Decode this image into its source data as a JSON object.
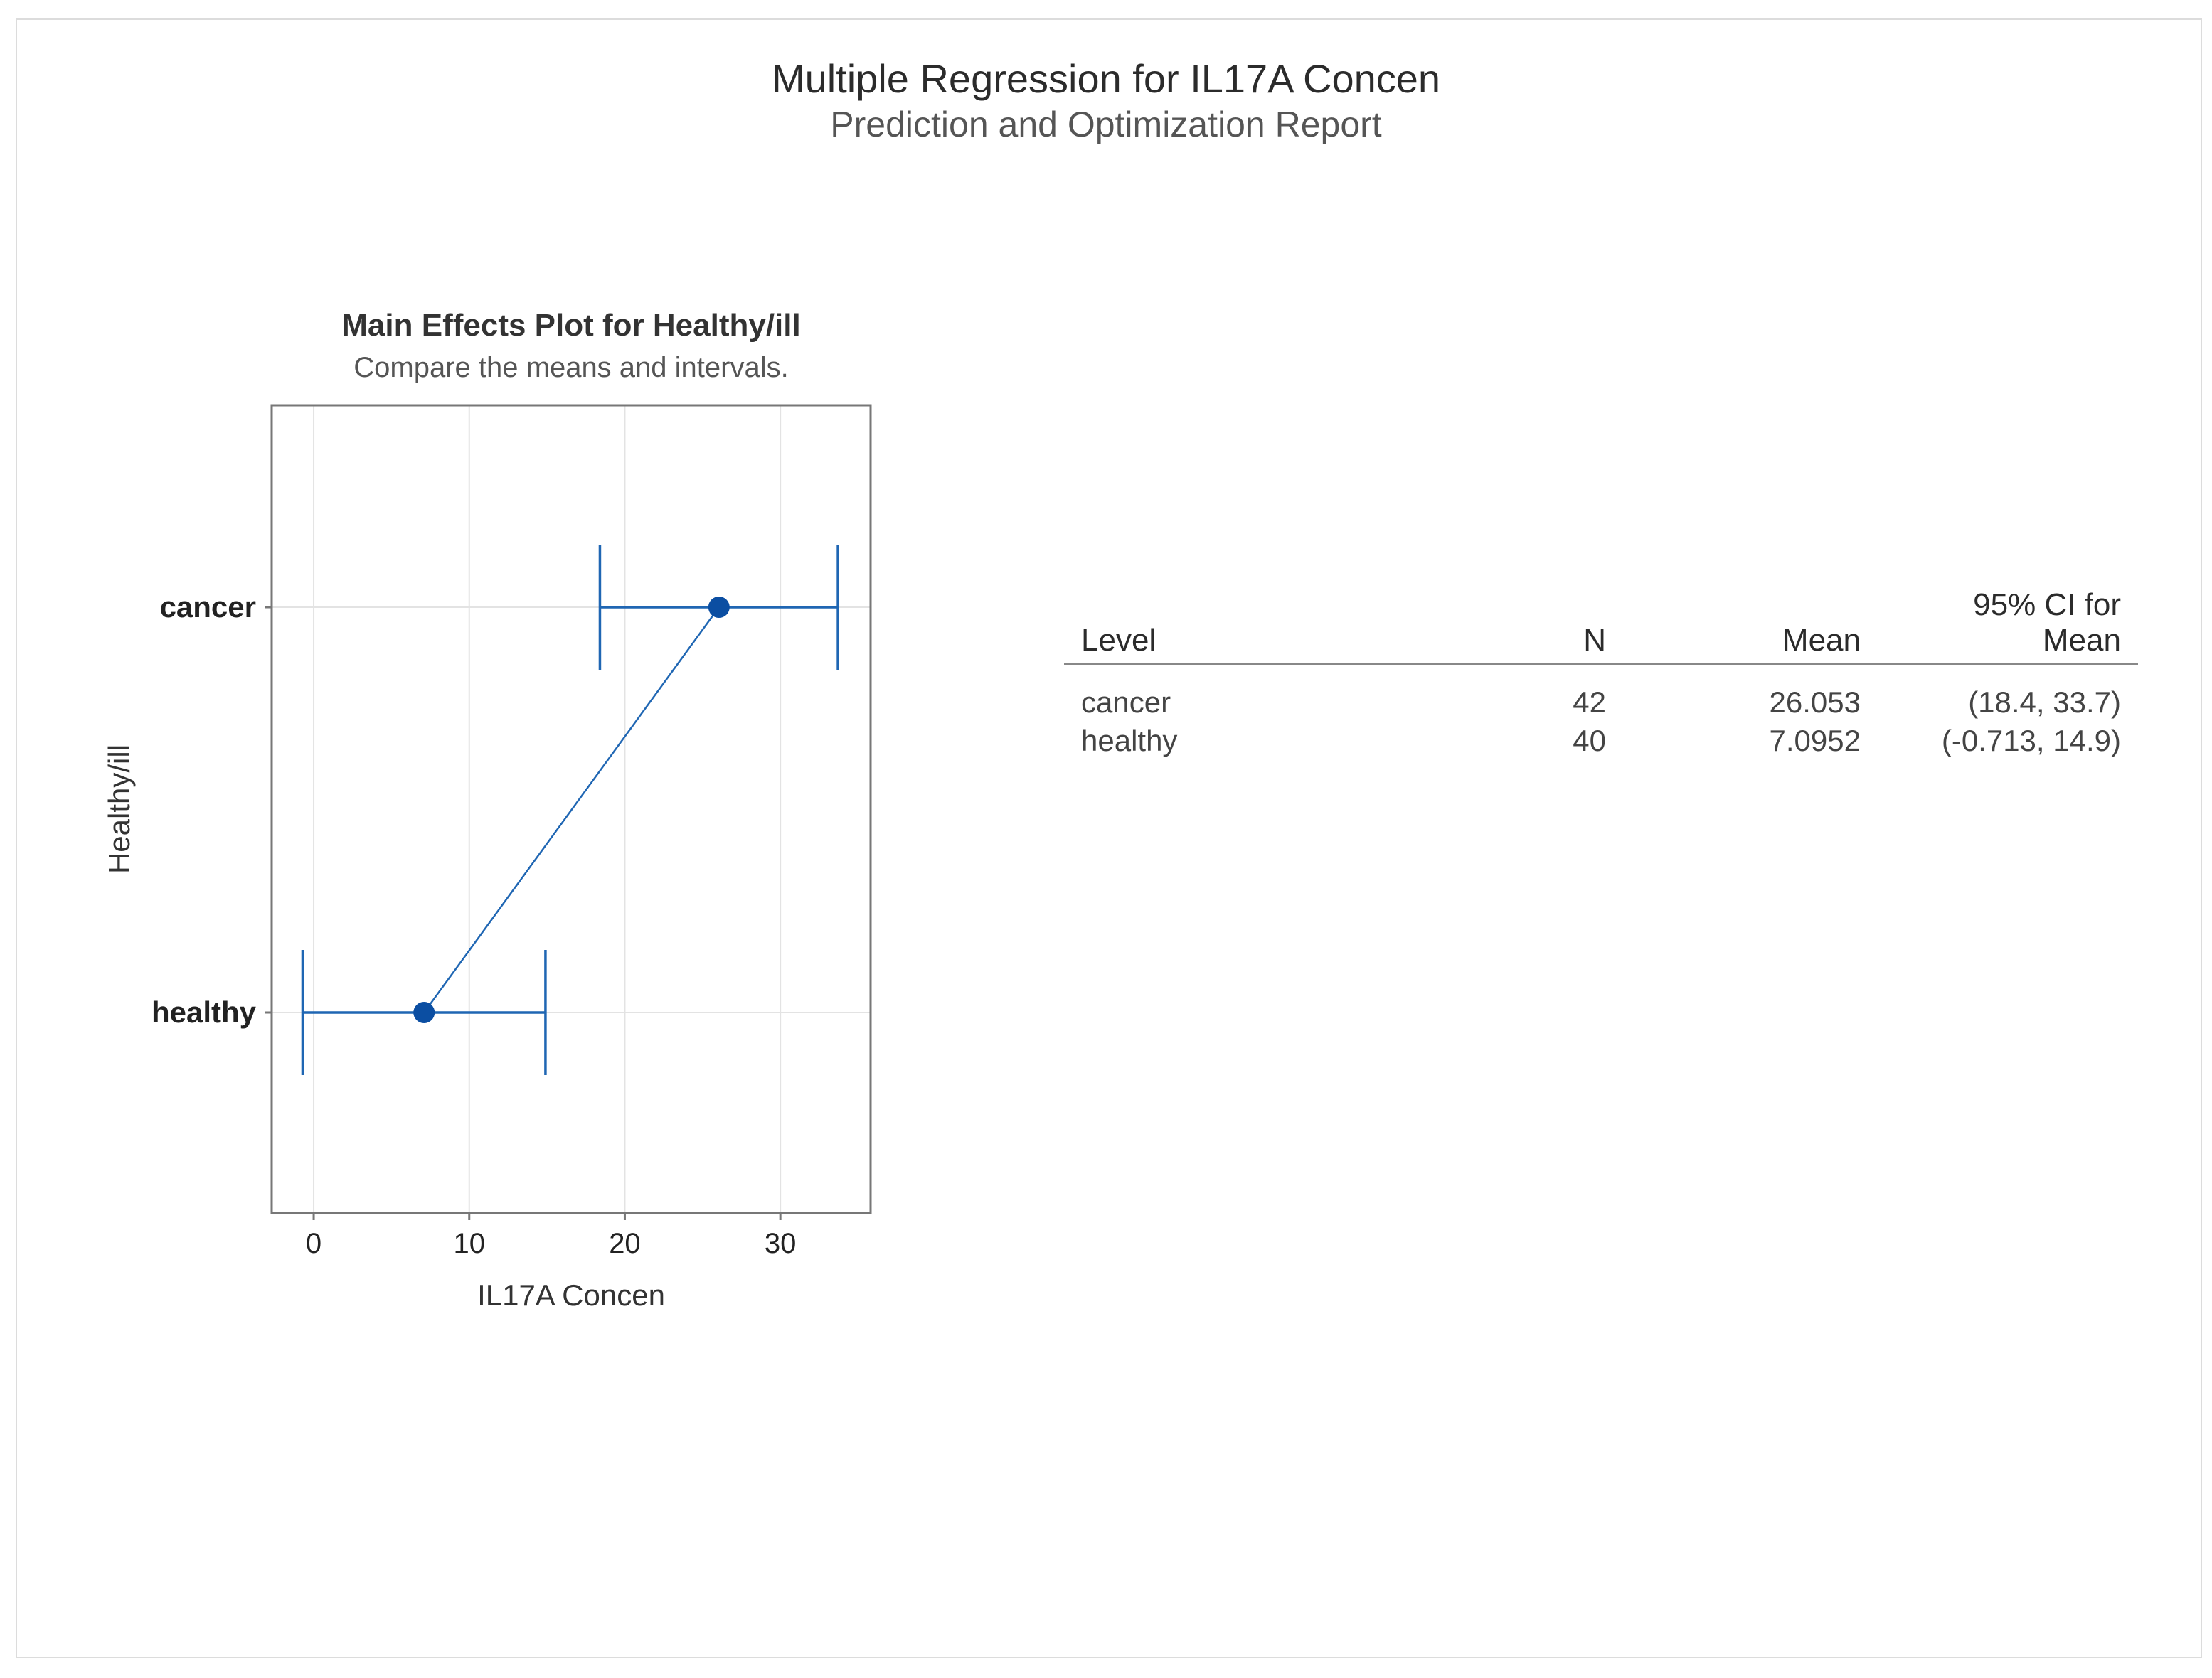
{
  "report": {
    "title": "Multiple Regression for IL17A Concen",
    "subtitle": "Prediction and Optimization Report"
  },
  "chart_data": {
    "type": "scatter",
    "title": "Main Effects Plot for Healthy/ill",
    "subtitle": "Compare the means and intervals.",
    "xlabel": "IL17A Concen",
    "ylabel": "Healthy/ill",
    "xlim": [
      -2.7,
      35.8
    ],
    "xticks": [
      0,
      10,
      20,
      30
    ],
    "categories": [
      "cancer",
      "healthy"
    ],
    "means": [
      26.053,
      7.0952
    ],
    "ci_lower": [
      18.4,
      -0.713
    ],
    "ci_upper": [
      33.7,
      14.9
    ],
    "grid": true,
    "connect_means": true,
    "color": "#1f66b3",
    "marker_color": "#0b4ea2"
  },
  "table": {
    "headers": [
      "Level",
      "N",
      "Mean",
      "95% CI for Mean"
    ],
    "rows": [
      {
        "level": "cancer",
        "n": "42",
        "mean": "26.053",
        "ci": "(18.4, 33.7)"
      },
      {
        "level": "healthy",
        "n": "40",
        "mean": "7.0952",
        "ci": "(-0.713, 14.9)"
      }
    ]
  }
}
